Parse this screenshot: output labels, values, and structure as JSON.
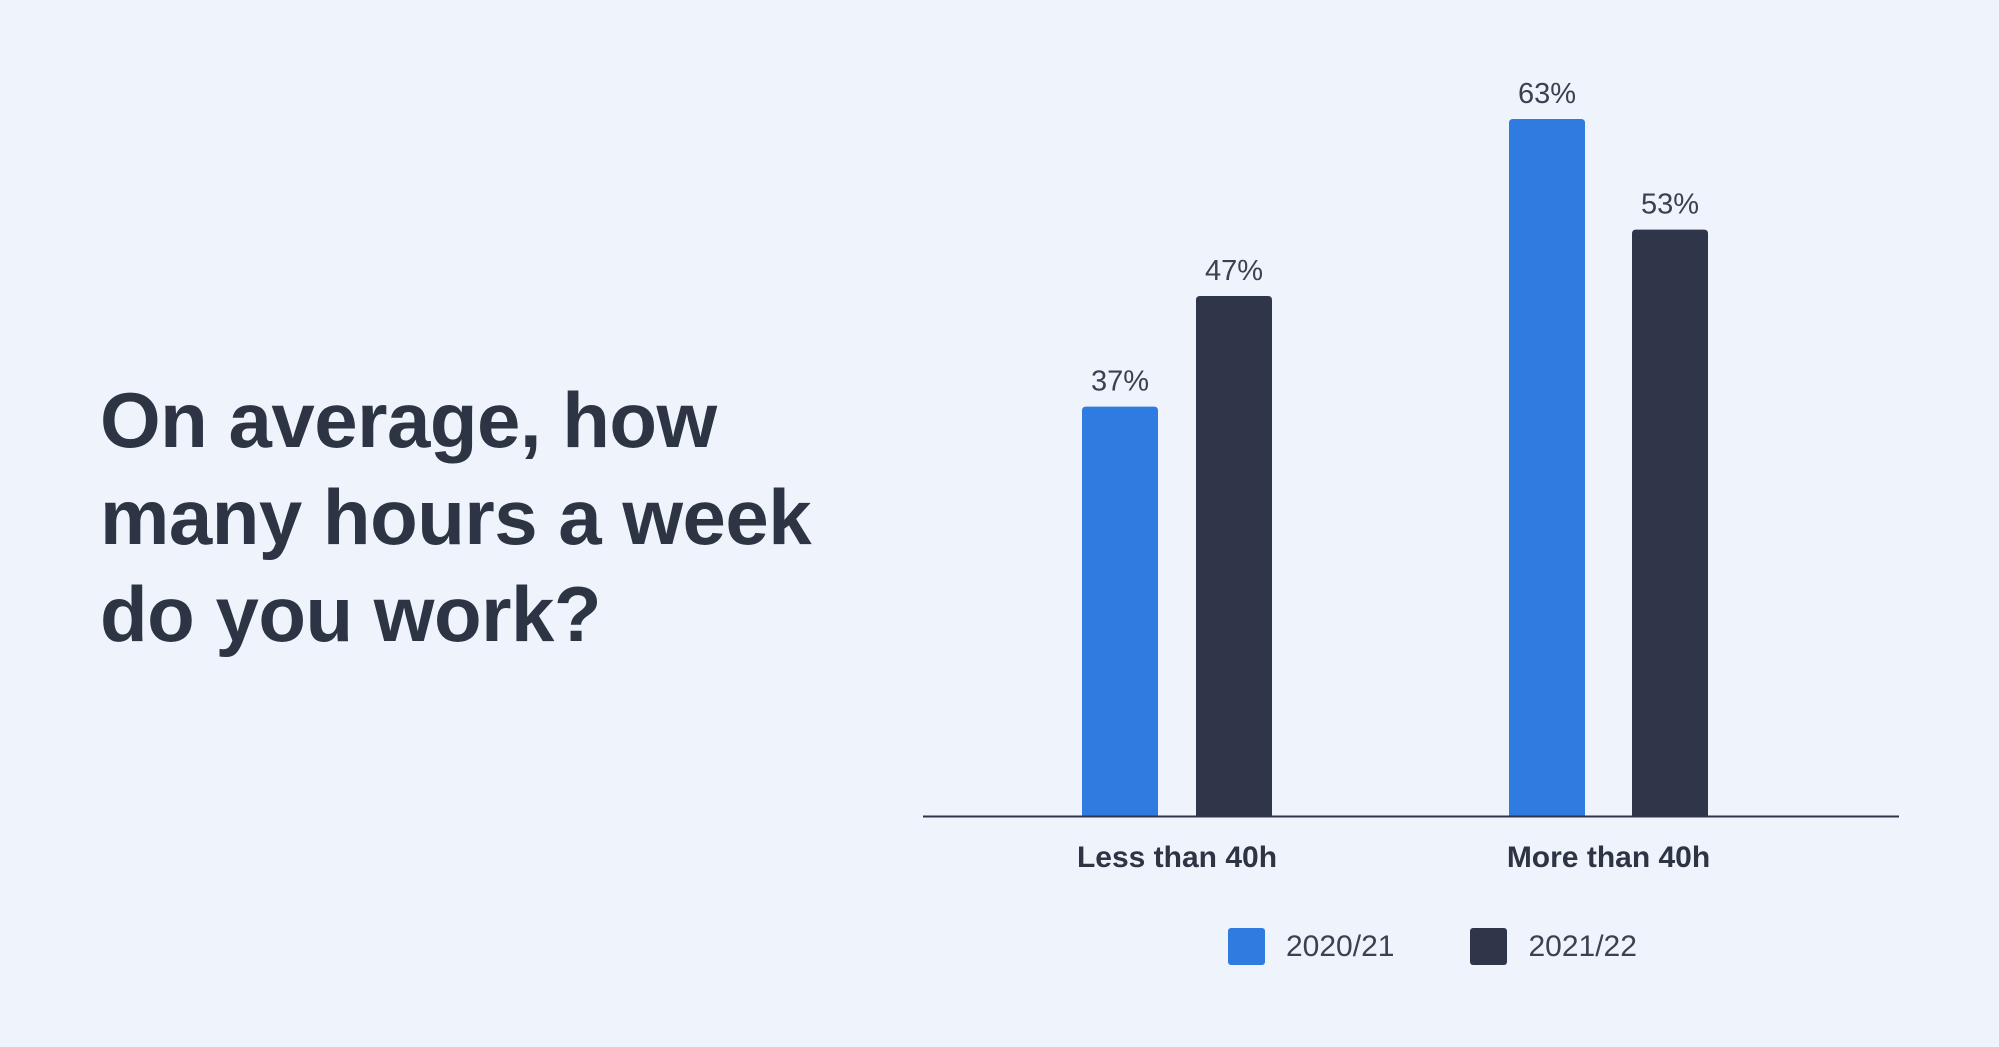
{
  "headline": "On average, how\nmany hours a week\ndo you work?",
  "colors": {
    "background": "#eff4fc",
    "series_2020": "#2f7be0",
    "series_2021": "#30364a",
    "text": "#2d3444",
    "axis": "#30364a"
  },
  "chart_data": {
    "type": "bar",
    "categories": [
      "Less than 40h",
      "More than 40h"
    ],
    "series": [
      {
        "name": "2020/21",
        "values": [
          37,
          63
        ],
        "labels": [
          "37%",
          "63%"
        ]
      },
      {
        "name": "2021/22",
        "values": [
          47,
          53
        ],
        "labels": [
          "47%",
          "53%"
        ]
      }
    ],
    "ylim": [
      0,
      63
    ],
    "grid": false,
    "legend_position": "bottom-center",
    "title": "",
    "xlabel": "",
    "ylabel": ""
  },
  "legend": [
    {
      "label": "2020/21",
      "color": "#2f7be0"
    },
    {
      "label": "2021/22",
      "color": "#30364a"
    }
  ]
}
